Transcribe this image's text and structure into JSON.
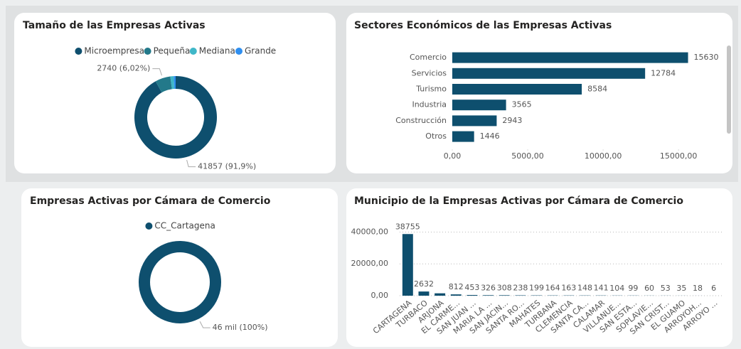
{
  "chart_data": [
    {
      "type": "donut",
      "title": "Tamaño de las Empresas Activas",
      "categories": [
        "Microempresa",
        "Pequeña",
        "Mediana",
        "Grande"
      ],
      "values": [
        41857,
        2740,
        600,
        349
      ],
      "value_labels": [
        "41857 (91,9%)",
        "2740 (6,02%)",
        null,
        null
      ],
      "colors": [
        "#0e4f6e",
        "#23798a",
        "#3fb7c8",
        "#2f8ff0"
      ]
    },
    {
      "type": "hbar",
      "title": "Sectores Económicos de las Empresas Activas",
      "categories": [
        "Comercio",
        "Servicios",
        "Turismo",
        "Industria",
        "Construcción",
        "Otros"
      ],
      "values": [
        15630,
        12784,
        8584,
        3565,
        2943,
        1446
      ],
      "color": "#0e4f6e",
      "xlim": [
        0,
        16500
      ],
      "xticks": [
        {
          "value": 0,
          "label": "0,00"
        },
        {
          "value": 5000,
          "label": "5000,00"
        },
        {
          "value": 10000,
          "label": "10000,00"
        },
        {
          "value": 15000,
          "label": "15000,00"
        }
      ]
    },
    {
      "type": "donut",
      "title": "Empresas Activas por Cámara de Comercio",
      "categories": [
        "CC_Cartagena"
      ],
      "values": [
        45546
      ],
      "value_labels": [
        "46 mil (100%)"
      ],
      "colors": [
        "#0e4f6e"
      ]
    },
    {
      "type": "bar",
      "title": "Municipio de la Empresas Activas por Cámara de Comercio",
      "categories": [
        "CARTAGENA",
        "TURBACO",
        "ARJONA",
        "EL CARME...",
        "SAN JUAN ...",
        "MARIA LA ...",
        "SAN JACIN...",
        "SANTA RO...",
        "MAHATES",
        "TURBANA",
        "CLEMENCIA",
        "SANTA CA...",
        "CALAMAR",
        "VILLANUE...",
        "SAN ESTA...",
        "SOPLAVIE...",
        "SAN CRIST...",
        "EL GUAMO",
        "ARROYOH...",
        "ARROYO ..."
      ],
      "values": [
        38755,
        2632,
        1500,
        812,
        453,
        326,
        308,
        238,
        199,
        164,
        163,
        148,
        141,
        104,
        99,
        60,
        53,
        35,
        18,
        6
      ],
      "value_labels": [
        "38755",
        "2632",
        null,
        "812",
        "453",
        "326",
        "308",
        "238",
        "199",
        "164",
        "163",
        "148",
        "141",
        "104",
        "99",
        "60",
        "53",
        "35",
        "18",
        "6"
      ],
      "color": "#0e4f6e",
      "ylim": [
        0,
        42000
      ],
      "yticks": [
        {
          "value": 0,
          "label": "0,00"
        },
        {
          "value": 20000,
          "label": "20000,00"
        },
        {
          "value": 40000,
          "label": "40000,00"
        }
      ],
      "grid": true
    }
  ]
}
